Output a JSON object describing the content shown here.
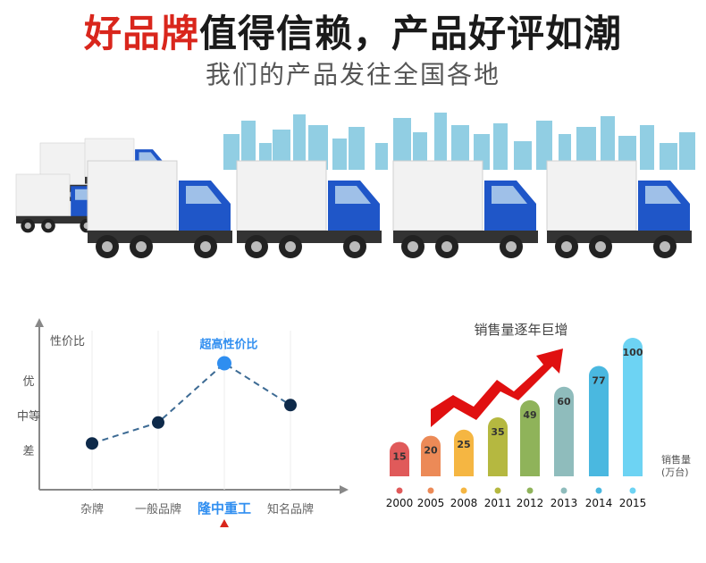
{
  "header": {
    "title_highlight": "好品牌",
    "title_rest": "值得信赖，产品好评如潮",
    "subtitle": "我们的产品发往全国各地"
  },
  "colors": {
    "accent_red": "#d9261c",
    "highlight_blue": "#2f8ef0",
    "truck_blue": "#1f56c8",
    "skyline": "#7ec6de"
  },
  "chart_data": [
    {
      "type": "line",
      "ylabel": "性价比",
      "y_levels": [
        "差",
        "中等",
        "优"
      ],
      "categories": [
        "杂牌",
        "一般品牌",
        "隆中重工",
        "知名品牌"
      ],
      "values": [
        1.2,
        1.8,
        3.5,
        2.3
      ],
      "highlight_index": 2,
      "annotation": "超高性价比",
      "line_style": "dashed"
    },
    {
      "type": "bar",
      "title": "销售量逐年巨增",
      "ylabel": "销售量\n(万台)",
      "ylabel_lines": [
        "销售量",
        "(万台)"
      ],
      "categories": [
        "2000",
        "2005",
        "2008",
        "2011",
        "2012",
        "2013",
        "2014",
        "2015"
      ],
      "values": [
        15,
        20,
        25,
        35,
        49,
        60,
        77,
        100
      ],
      "bar_colors": [
        "#e05a5a",
        "#ec8a57",
        "#f5b642",
        "#b5b840",
        "#8fb35a",
        "#8fbcbc",
        "#4ab8e0",
        "#6dd3f3"
      ]
    }
  ]
}
